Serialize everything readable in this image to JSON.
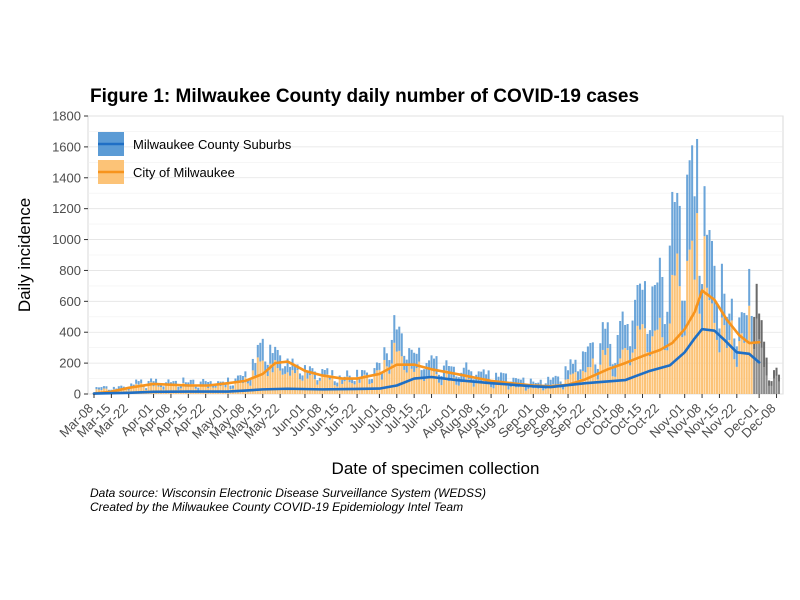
{
  "chart_data": {
    "type": "bar",
    "title": "Figure 1: Milwaukee County daily number of COVID-19 cases",
    "xlabel": "Date of specimen collection",
    "ylabel": "Daily incidence",
    "ylim": [
      0,
      1800
    ],
    "yticks": [
      0,
      200,
      400,
      600,
      800,
      1000,
      1200,
      1400,
      1600,
      1800
    ],
    "x_start": "Mar-08",
    "x_days": 276,
    "xtick_labels": [
      "Mar-08",
      "Mar-15",
      "Mar-22",
      "Apr-01",
      "Apr-08",
      "Apr-15",
      "Apr-22",
      "May-01",
      "May-08",
      "May-15",
      "May-22",
      "Jun-01",
      "Jun-08",
      "Jun-15",
      "Jun-22",
      "Jul-01",
      "Jul-08",
      "Jul-15",
      "Jul-22",
      "Aug-01",
      "Aug-08",
      "Aug-15",
      "Aug-22",
      "Sep-01",
      "Sep-08",
      "Sep-15",
      "Sep-22",
      "Oct-01",
      "Oct-08",
      "Oct-15",
      "Oct-22",
      "Nov-01",
      "Nov-08",
      "Nov-15",
      "Nov-22",
      "Dec-01",
      "Dec-08"
    ],
    "xtick_days": [
      0,
      7,
      14,
      24,
      31,
      38,
      45,
      54,
      61,
      68,
      75,
      85,
      92,
      99,
      106,
      115,
      122,
      129,
      136,
      146,
      153,
      160,
      167,
      177,
      184,
      191,
      198,
      207,
      214,
      221,
      228,
      238,
      245,
      252,
      259,
      268,
      275
    ],
    "grid": true,
    "legend_position": "top-left",
    "incomplete_from_day": 266,
    "series": [
      {
        "name": "Milwaukee County Suburbs",
        "bar_color": "#5b9bd5",
        "line_color": "#1f6fc5",
        "trend_days": [
          0,
          14,
          24,
          38,
          54,
          61,
          68,
          78,
          92,
          106,
          115,
          122,
          129,
          136,
          146,
          160,
          177,
          184,
          198,
          214,
          224,
          232,
          238,
          242,
          245,
          250,
          254,
          259,
          264,
          268
        ],
        "trend_values": [
          3,
          8,
          14,
          16,
          16,
          22,
          30,
          34,
          30,
          33,
          35,
          55,
          100,
          110,
          90,
          70,
          50,
          45,
          70,
          90,
          150,
          185,
          270,
          360,
          420,
          410,
          350,
          270,
          260,
          205
        ],
        "daily_days": [
          10,
          20,
          30,
          44,
          55,
          62,
          68,
          70,
          72,
          75,
          82,
          92,
          100,
          110,
          116,
          118,
          120,
          122,
          124,
          126,
          131,
          138,
          146,
          152,
          160,
          168,
          178,
          188,
          195,
          198,
          205,
          210,
          215,
          218,
          221,
          225,
          230,
          232,
          234,
          236,
          238,
          240,
          242,
          244,
          246,
          248,
          250,
          252,
          254,
          256,
          258,
          262,
          264,
          266,
          268,
          270,
          272
        ],
        "daily_values": [
          15,
          25,
          30,
          30,
          30,
          40,
          120,
          110,
          100,
          90,
          50,
          40,
          30,
          40,
          60,
          120,
          150,
          160,
          140,
          150,
          120,
          100,
          80,
          70,
          60,
          50,
          40,
          60,
          100,
          110,
          150,
          180,
          200,
          300,
          240,
          280,
          320,
          400,
          550,
          500,
          350,
          600,
          520,
          470,
          400,
          450,
          380,
          300,
          250,
          220,
          180,
          200,
          250,
          280,
          200,
          130,
          50
        ]
      },
      {
        "name": "City of Milwaukee",
        "bar_color": "#fcc377",
        "line_color": "#f7941d",
        "trend_days": [
          0,
          7,
          14,
          24,
          38,
          46,
          54,
          61,
          68,
          73,
          78,
          85,
          92,
          100,
          106,
          115,
          122,
          129,
          136,
          146,
          160,
          168,
          177,
          184,
          191,
          198,
          207,
          214,
          221,
          228,
          233,
          238,
          242,
          245,
          250,
          255,
          260,
          264,
          268
        ],
        "trend_values": [
          3,
          15,
          40,
          65,
          55,
          55,
          70,
          85,
          130,
          200,
          210,
          150,
          120,
          100,
          100,
          130,
          190,
          190,
          160,
          130,
          85,
          70,
          55,
          50,
          60,
          95,
          160,
          200,
          245,
          285,
          330,
          420,
          530,
          670,
          610,
          480,
          380,
          330,
          335
        ],
        "daily_days": [
          10,
          20,
          30,
          44,
          55,
          62,
          68,
          70,
          72,
          75,
          82,
          92,
          100,
          110,
          116,
          118,
          120,
          122,
          124,
          126,
          131,
          138,
          146,
          152,
          160,
          168,
          178,
          188,
          195,
          198,
          205,
          210,
          215,
          218,
          221,
          225,
          230,
          232,
          234,
          236,
          238,
          240,
          242,
          244,
          246,
          248,
          250,
          252,
          254,
          256,
          258,
          262,
          264,
          266,
          268,
          270,
          272
        ],
        "daily_values": [
          30,
          60,
          60,
          50,
          60,
          90,
          230,
          200,
          200,
          180,
          140,
          110,
          90,
          100,
          130,
          240,
          250,
          260,
          230,
          220,
          170,
          140,
          100,
          100,
          80,
          60,
          40,
          60,
          130,
          150,
          230,
          250,
          300,
          380,
          350,
          400,
          450,
          550,
          750,
          820,
          600,
          750,
          990,
          830,
          900,
          750,
          620,
          540,
          470,
          380,
          360,
          350,
          500,
          560,
          400,
          220,
          100
        ]
      }
    ],
    "notes": [
      "Data source: Wisconsin Electronic Disease Surveillance System (WEDSS)",
      "Created by the Milwaukee County COVID-19 Epidemiology Intel Team"
    ]
  }
}
